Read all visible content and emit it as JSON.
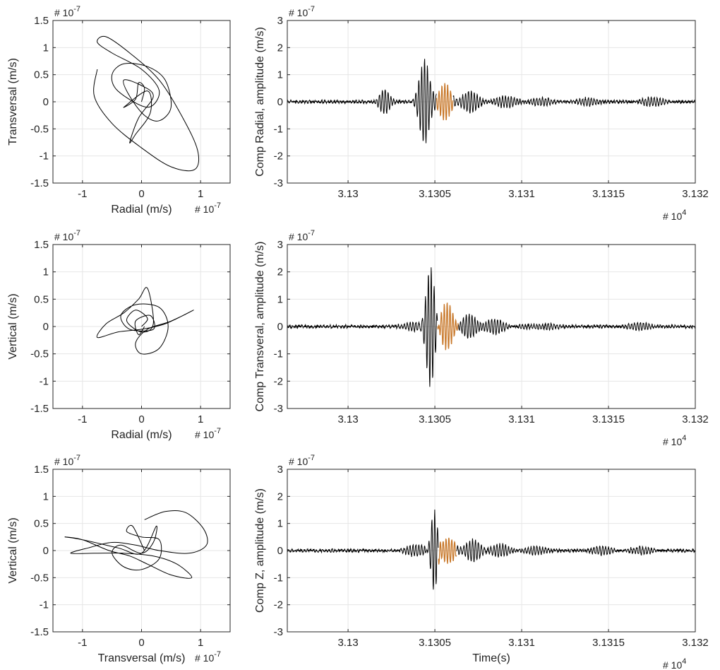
{
  "figure": {
    "title": ""
  },
  "chart_data": [
    {
      "id": "hodo-1",
      "type": "line",
      "subtype": "particle-motion",
      "xlabel": "Radial (m/s)",
      "ylabel": "Transversal (m/s)",
      "x_exponent_label": "# 10",
      "x_exponent": "-7",
      "y_exponent_label": "# 10",
      "y_exponent": "-7",
      "xlim": [
        -1.5,
        1.5
      ],
      "ylim": [
        -1.5,
        1.5
      ],
      "xticks": [
        -1,
        0,
        1
      ],
      "xtick_labels": [
        "-1",
        "0",
        "1"
      ],
      "yticks": [
        -1.5,
        -1,
        -0.5,
        0,
        0.5,
        1,
        1.5
      ],
      "ytick_labels": [
        "-1.5",
        "-1",
        "-0.5",
        "0",
        "0.5",
        "1",
        "1.5"
      ],
      "grid": true,
      "line_color": "#000000",
      "trace": [
        [
          0.0,
          0.0
        ],
        [
          0.05,
          0.25
        ],
        [
          -0.05,
          0.35
        ],
        [
          -0.1,
          0.05
        ],
        [
          -0.3,
          -0.1
        ],
        [
          0.1,
          0.2
        ],
        [
          0.15,
          -0.2
        ],
        [
          -0.1,
          -0.6
        ],
        [
          -0.2,
          -0.75
        ],
        [
          -0.05,
          -0.3
        ],
        [
          0.2,
          0.1
        ],
        [
          0.0,
          0.3
        ],
        [
          -0.3,
          0.4
        ],
        [
          -0.2,
          0.1
        ],
        [
          0.05,
          -0.25
        ],
        [
          0.3,
          -0.35
        ],
        [
          0.5,
          -0.1
        ],
        [
          0.4,
          0.4
        ],
        [
          0.1,
          0.65
        ],
        [
          -0.3,
          0.7
        ],
        [
          -0.5,
          0.5
        ],
        [
          -0.4,
          0.2
        ],
        [
          0.1,
          -0.1
        ],
        [
          0.3,
          0.2
        ],
        [
          0.0,
          0.6
        ],
        [
          -0.5,
          0.9
        ],
        [
          -0.75,
          1.1
        ],
        [
          -0.6,
          1.2
        ],
        [
          -0.2,
          0.9
        ],
        [
          0.3,
          0.4
        ],
        [
          0.7,
          -0.3
        ],
        [
          0.95,
          -0.9
        ],
        [
          0.9,
          -1.25
        ],
        [
          0.5,
          -1.2
        ],
        [
          0.0,
          -0.85
        ],
        [
          -0.5,
          -0.4
        ],
        [
          -0.8,
          0.1
        ],
        [
          -0.75,
          0.6
        ]
      ]
    },
    {
      "id": "seis-radial",
      "type": "line",
      "subtype": "seismogram",
      "xlabel": "",
      "ylabel": "Comp Radial, amplitude (m/s)",
      "x_exponent_label": "# 10",
      "x_exponent": "4",
      "y_exponent_label": "# 10",
      "y_exponent": "-7",
      "xlim": [
        3.12965,
        3.132
      ],
      "ylim": [
        -3,
        3
      ],
      "xticks": [
        3.13,
        3.1305,
        3.131,
        3.1315,
        3.132
      ],
      "xtick_labels": [
        "3.13",
        "3.1305",
        "3.131",
        "3.1315",
        "3.132"
      ],
      "yticks": [
        -3,
        -2,
        -1,
        0,
        1,
        2,
        3
      ],
      "ytick_labels": [
        "-3",
        "-2",
        "-1",
        "0",
        "1",
        "2",
        "3"
      ],
      "grid": true,
      "line_color": "#000000",
      "highlight_color": "#c8782a",
      "highlight_range": [
        3.13051,
        3.130605
      ],
      "packets": [
        {
          "t": 3.13021,
          "amp": 0.5,
          "width": 4e-05
        },
        {
          "t": 3.13044,
          "amp": 1.55,
          "width": 4e-05
        },
        {
          "t": 3.13056,
          "amp": 0.7,
          "width": 4.5e-05
        },
        {
          "t": 3.1307,
          "amp": 0.4,
          "width": 6e-05
        },
        {
          "t": 3.1309,
          "amp": 0.2,
          "width": 8e-05
        },
        {
          "t": 3.1311,
          "amp": 0.12,
          "width": 0.0001
        },
        {
          "t": 3.1314,
          "amp": 0.15,
          "width": 8e-05
        },
        {
          "t": 3.13175,
          "amp": 0.14,
          "width": 0.0001
        }
      ],
      "noise_amp": 0.06
    },
    {
      "id": "hodo-2",
      "type": "line",
      "subtype": "particle-motion",
      "xlabel": "Radial (m/s)",
      "ylabel": "Vertical (m/s)",
      "x_exponent_label": "# 10",
      "x_exponent": "-7",
      "y_exponent_label": "# 10",
      "y_exponent": "-7",
      "xlim": [
        -1.5,
        1.5
      ],
      "ylim": [
        -1.5,
        1.5
      ],
      "xticks": [
        -1,
        0,
        1
      ],
      "xtick_labels": [
        "-1",
        "0",
        "1"
      ],
      "yticks": [
        -1.5,
        -1,
        -0.5,
        0,
        0.5,
        1,
        1.5
      ],
      "ytick_labels": [
        "-1.5",
        "-1",
        "-0.5",
        "0",
        "0.5",
        "1",
        "1.5"
      ],
      "grid": true,
      "line_color": "#000000",
      "trace": [
        [
          0.0,
          0.0
        ],
        [
          0.1,
          0.15
        ],
        [
          -0.1,
          0.3
        ],
        [
          -0.25,
          0.1
        ],
        [
          0.0,
          -0.1
        ],
        [
          0.2,
          0.05
        ],
        [
          0.1,
          0.7
        ],
        [
          -0.05,
          0.5
        ],
        [
          -0.3,
          0.25
        ],
        [
          -0.6,
          0.05
        ],
        [
          -0.75,
          -0.2
        ],
        [
          -0.4,
          -0.1
        ],
        [
          0.0,
          -0.05
        ],
        [
          0.4,
          0.05
        ],
        [
          0.88,
          0.3
        ],
        [
          0.5,
          0.1
        ],
        [
          0.1,
          -0.05
        ],
        [
          -0.1,
          -0.3
        ],
        [
          0.0,
          -0.5
        ],
        [
          0.3,
          -0.4
        ],
        [
          0.45,
          0.0
        ],
        [
          0.3,
          0.35
        ],
        [
          -0.1,
          0.4
        ],
        [
          -0.35,
          0.2
        ],
        [
          -0.2,
          -0.05
        ],
        [
          0.2,
          -0.05
        ],
        [
          0.15,
          0.2
        ],
        [
          -0.1,
          0.1
        ],
        [
          -0.05,
          -0.15
        ],
        [
          0.05,
          0.0
        ]
      ]
    },
    {
      "id": "seis-transversal",
      "type": "line",
      "subtype": "seismogram",
      "xlabel": "",
      "ylabel": "Comp Transveral, amplitude (m/s)",
      "x_exponent_label": "# 10",
      "x_exponent": "4",
      "y_exponent_label": "# 10",
      "y_exponent": "-7",
      "xlim": [
        3.12965,
        3.132
      ],
      "ylim": [
        -3,
        3
      ],
      "xticks": [
        3.13,
        3.1305,
        3.131,
        3.1315,
        3.132
      ],
      "xtick_labels": [
        "3.13",
        "3.1305",
        "3.131",
        "3.1315",
        "3.132"
      ],
      "yticks": [
        -3,
        -2,
        -1,
        0,
        1,
        2,
        3
      ],
      "ytick_labels": [
        "-3",
        "-2",
        "-1",
        "0",
        "1",
        "2",
        "3"
      ],
      "grid": true,
      "line_color": "#000000",
      "highlight_color": "#c8782a",
      "highlight_range": [
        3.130515,
        3.130635
      ],
      "packets": [
        {
          "t": 3.130475,
          "amp": 2.3,
          "width": 3.5e-05
        },
        {
          "t": 3.13057,
          "amp": 0.9,
          "width": 5e-05
        },
        {
          "t": 3.1307,
          "amp": 0.45,
          "width": 6e-05
        },
        {
          "t": 3.13085,
          "amp": 0.25,
          "width": 8e-05
        },
        {
          "t": 3.1304,
          "amp": 0.2,
          "width": 8e-05
        },
        {
          "t": 3.1311,
          "amp": 0.12,
          "width": 0.0001
        },
        {
          "t": 3.1317,
          "amp": 0.12,
          "width": 0.0001
        }
      ],
      "noise_amp": 0.06
    },
    {
      "id": "hodo-3",
      "type": "line",
      "subtype": "particle-motion",
      "xlabel": "Transversal (m/s)",
      "ylabel": "Vertical (m/s)",
      "x_exponent_label": "# 10",
      "x_exponent": "-7",
      "y_exponent_label": "# 10",
      "y_exponent": "-7",
      "xlim": [
        -1.5,
        1.5
      ],
      "ylim": [
        -1.5,
        1.5
      ],
      "xticks": [
        -1,
        0,
        1
      ],
      "xtick_labels": [
        "-1",
        "0",
        "1"
      ],
      "yticks": [
        -1.5,
        -1,
        -0.5,
        0,
        0.5,
        1,
        1.5
      ],
      "ytick_labels": [
        "-1.5",
        "-1",
        "-0.5",
        "0",
        "0.5",
        "1",
        "1.5"
      ],
      "grid": true,
      "line_color": "#000000",
      "trace": [
        [
          0.05,
          0.57
        ],
        [
          0.4,
          0.72
        ],
        [
          0.75,
          0.7
        ],
        [
          1.05,
          0.4
        ],
        [
          1.1,
          0.1
        ],
        [
          0.8,
          -0.05
        ],
        [
          0.3,
          0.0
        ],
        [
          -0.1,
          0.1
        ],
        [
          -0.5,
          0.15
        ],
        [
          -0.9,
          0.05
        ],
        [
          -1.2,
          -0.05
        ],
        [
          -0.8,
          -0.05
        ],
        [
          -0.3,
          -0.05
        ],
        [
          0.2,
          -0.1
        ],
        [
          0.6,
          -0.25
        ],
        [
          0.85,
          -0.5
        ],
        [
          0.5,
          -0.45
        ],
        [
          0.1,
          -0.25
        ],
        [
          -0.2,
          -0.1
        ],
        [
          -0.55,
          0.0
        ],
        [
          -1.0,
          0.2
        ],
        [
          -1.3,
          0.25
        ],
        [
          -1.0,
          0.2
        ],
        [
          -0.4,
          0.05
        ],
        [
          0.0,
          -0.05
        ],
        [
          0.25,
          0.45
        ],
        [
          0.2,
          0.15
        ],
        [
          0.0,
          -0.05
        ],
        [
          -0.35,
          0.1
        ],
        [
          -0.5,
          -0.05
        ],
        [
          -0.3,
          -0.3
        ],
        [
          0.0,
          -0.35
        ],
        [
          0.3,
          -0.15
        ],
        [
          0.3,
          0.2
        ],
        [
          0.0,
          0.25
        ],
        [
          -0.25,
          0.35
        ],
        [
          -0.15,
          0.45
        ],
        [
          0.05,
          0.0
        ]
      ]
    },
    {
      "id": "seis-z",
      "type": "line",
      "subtype": "seismogram",
      "xlabel": "Time(s)",
      "ylabel": "Comp Z, amplitude (m/s)",
      "x_exponent_label": "# 10",
      "x_exponent": "4",
      "y_exponent_label": "# 10",
      "y_exponent": "-7",
      "xlim": [
        3.12965,
        3.132
      ],
      "ylim": [
        -3,
        3
      ],
      "xticks": [
        3.13,
        3.1305,
        3.131,
        3.1315,
        3.132
      ],
      "xtick_labels": [
        "3.13",
        "3.1305",
        "3.131",
        "3.1315",
        "3.132"
      ],
      "yticks": [
        -3,
        -2,
        -1,
        0,
        1,
        2,
        3
      ],
      "ytick_labels": [
        "-3",
        "-2",
        "-1",
        "0",
        "1",
        "2",
        "3"
      ],
      "grid": true,
      "line_color": "#000000",
      "highlight_color": "#c8782a",
      "highlight_range": [
        3.13052,
        3.130625
      ],
      "packets": [
        {
          "t": 3.130495,
          "amp": 1.5,
          "width": 2.5e-05
        },
        {
          "t": 3.13058,
          "amp": 0.5,
          "width": 5e-05
        },
        {
          "t": 3.13072,
          "amp": 0.4,
          "width": 6e-05
        },
        {
          "t": 3.13088,
          "amp": 0.22,
          "width": 8e-05
        },
        {
          "t": 3.1304,
          "amp": 0.2,
          "width": 8e-05
        },
        {
          "t": 3.1311,
          "amp": 0.13,
          "width": 0.0001
        },
        {
          "t": 3.13145,
          "amp": 0.14,
          "width": 8e-05
        },
        {
          "t": 3.1317,
          "amp": 0.12,
          "width": 0.0001
        }
      ],
      "noise_amp": 0.06
    }
  ]
}
